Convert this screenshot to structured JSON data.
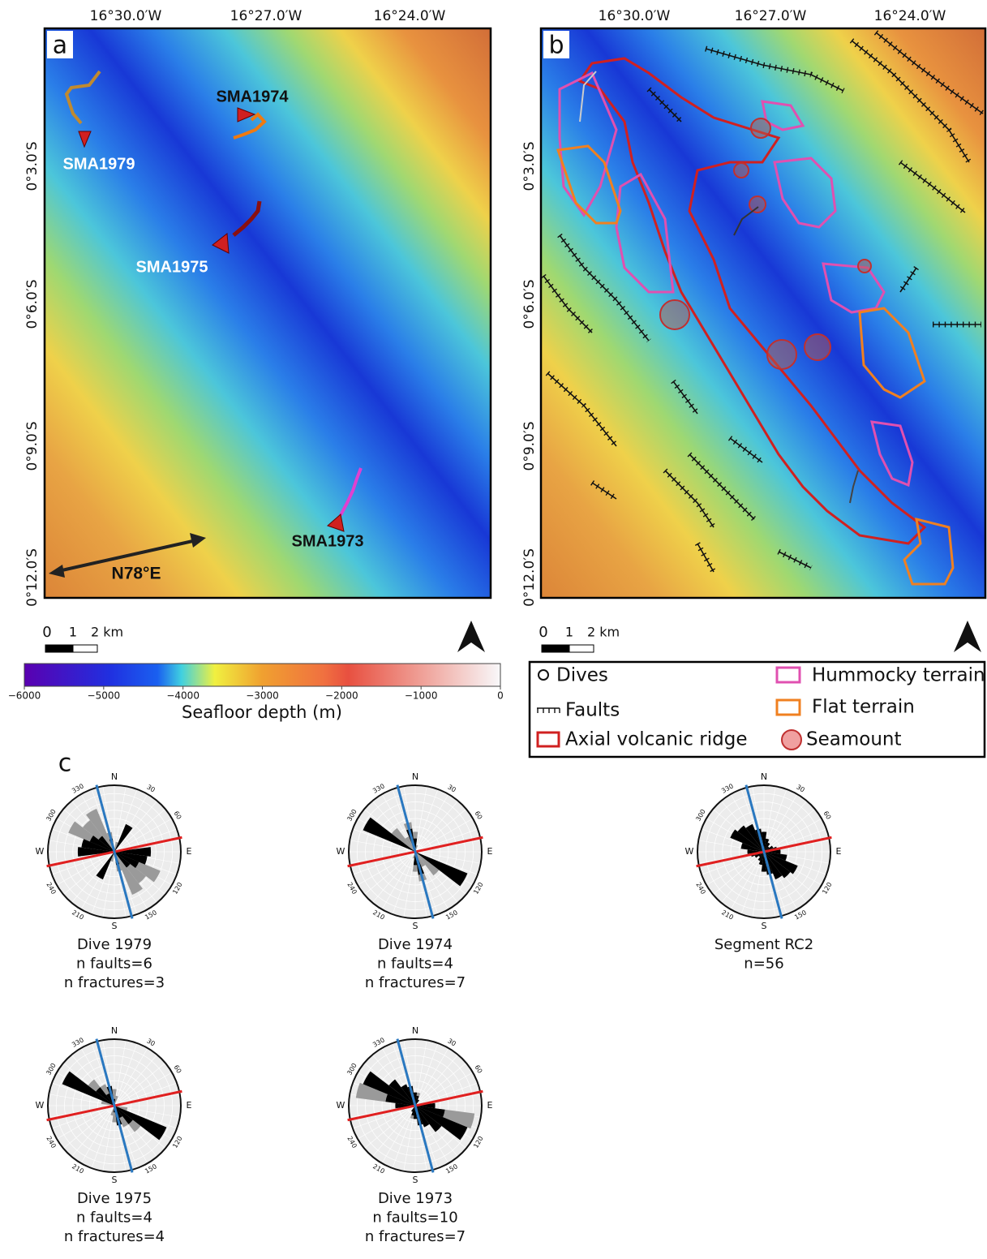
{
  "panel_a": {
    "label": "a",
    "dives": [
      "SMA1979",
      "SMA1974",
      "SMA1975",
      "SMA1973"
    ],
    "direction_label": "N78°E"
  },
  "panel_b": {
    "label": "b"
  },
  "map_axes": {
    "lon_ticks": [
      "16°30.0′W",
      "16°27.0′W",
      "16°24.0′W"
    ],
    "lat_ticks": [
      "0°3.0′S",
      "0°6.0′S",
      "0°9.0′S",
      "0°12.0′S"
    ]
  },
  "scale_bar": [
    "0",
    "1",
    "2 km"
  ],
  "colorbar": {
    "lim": [
      -6000,
      0
    ],
    "ticks": [
      {
        "value": -6000,
        "label": "−6000"
      },
      {
        "value": -5000,
        "label": "−5000"
      },
      {
        "value": -4000,
        "label": "−4000"
      },
      {
        "value": -3000,
        "label": "−3000"
      },
      {
        "value": -2000,
        "label": "−2000"
      },
      {
        "value": -1000,
        "label": "−1000"
      },
      0
    ],
    "label": "Seafloor depth (m)"
  },
  "legend": {
    "dives": "Dives",
    "faults": "Faults",
    "ridge": "Axial volcanic ridge",
    "hummocky": "Hummocky terrain",
    "flat": "Flat terrain",
    "seamount": "Seamount"
  },
  "panel_c": {
    "label": "c",
    "compass_labels": [
      "N",
      "30",
      "60",
      "E",
      "120",
      "150",
      "S",
      "210",
      "240",
      "W",
      "300",
      "330"
    ],
    "bins": [
      0,
      15,
      30,
      45,
      60,
      75,
      90,
      105,
      120,
      135,
      150,
      165
    ],
    "spreading_azimuth": 78,
    "ridge_azimuth": 165,
    "roses": [
      {
        "caption": [
          "Dive 1979",
          "n faults=6",
          "n fractures=3"
        ],
        "black": [
          0,
          0,
          0.45,
          0,
          0,
          0,
          0.55,
          0.5,
          0.4,
          0.3,
          0,
          0.2
        ],
        "grey": [
          0,
          0.15,
          0,
          0,
          0,
          0,
          0,
          0.35,
          0.75,
          0.6,
          0.7,
          0.3
        ]
      },
      {
        "caption": [
          "Dive 1974",
          "n faults=4",
          "n fractures=7"
        ],
        "black": [
          0.2,
          0,
          0,
          0,
          0,
          0,
          0,
          0,
          0.85,
          0,
          0,
          0.35
        ],
        "grey": [
          0.3,
          0.1,
          0,
          0,
          0,
          0,
          0,
          0,
          0,
          0.45,
          0.25,
          0.45
        ]
      },
      {
        "caption": [
          "Segment RC2",
          "n=56"
        ],
        "black": [
          0.3,
          0.2,
          0.15,
          0.1,
          0.15,
          0.2,
          0.25,
          0.35,
          0.55,
          0.5,
          0.45,
          0.35
        ],
        "grey": [
          0,
          0,
          0,
          0,
          0,
          0,
          0,
          0,
          0,
          0,
          0,
          0
        ]
      },
      {
        "caption": [
          "Dive 1975",
          "n faults=4",
          "n fractures=4"
        ],
        "black": [
          0.1,
          0,
          0,
          0,
          0,
          0,
          0,
          0,
          0.85,
          0.35,
          0.2,
          0.3
        ],
        "grey": [
          0.25,
          0.15,
          0,
          0,
          0,
          0,
          0,
          0.2,
          0.7,
          0.5,
          0.35,
          0.3
        ]
      },
      {
        "caption": [
          "Dive 1973",
          "n faults=10",
          "n fractures=7"
        ],
        "black": [
          0.2,
          0.15,
          0.1,
          0,
          0,
          0,
          0.3,
          0.45,
          0.85,
          0.5,
          0.35,
          0.3
        ],
        "grey": [
          0.15,
          0.2,
          0,
          0,
          0,
          0,
          0.25,
          0.9,
          0.6,
          0.3,
          0.2,
          0.1
        ]
      }
    ]
  }
}
